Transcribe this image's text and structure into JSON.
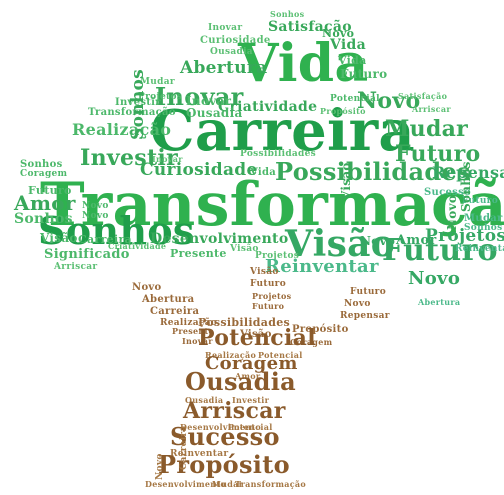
{
  "cloud": {
    "words": {
      "transformacao": "Transformação",
      "carreira": "Carreira",
      "vida": "Vida",
      "sonhos": "Sonhos",
      "visao": "Visão",
      "futuro": "Futuro",
      "possibilidades": "Possibilidades",
      "curiosidade": "Curiosidade",
      "investir": "Investir",
      "mudar": "Mudar",
      "novo": "Novo",
      "inovar": "Inovar",
      "abertura": "Abertura",
      "satisfacao": "Satisfação",
      "criatividade": "Criatividade",
      "ousadia": "Ousadia",
      "realizacao": "Realização",
      "amor": "Amor",
      "desenvolvimento": "Desenvolvimento",
      "presente": "Presente",
      "projetos": "Projetos",
      "repensar": "Repensar",
      "reinventar": "Reinventar",
      "significado": "Significado",
      "arriscar": "Arriscar",
      "coragem": "Coragem",
      "sucesso": "Sucesso",
      "potencial": "Potencial",
      "proposito": "Propósito"
    }
  }
}
